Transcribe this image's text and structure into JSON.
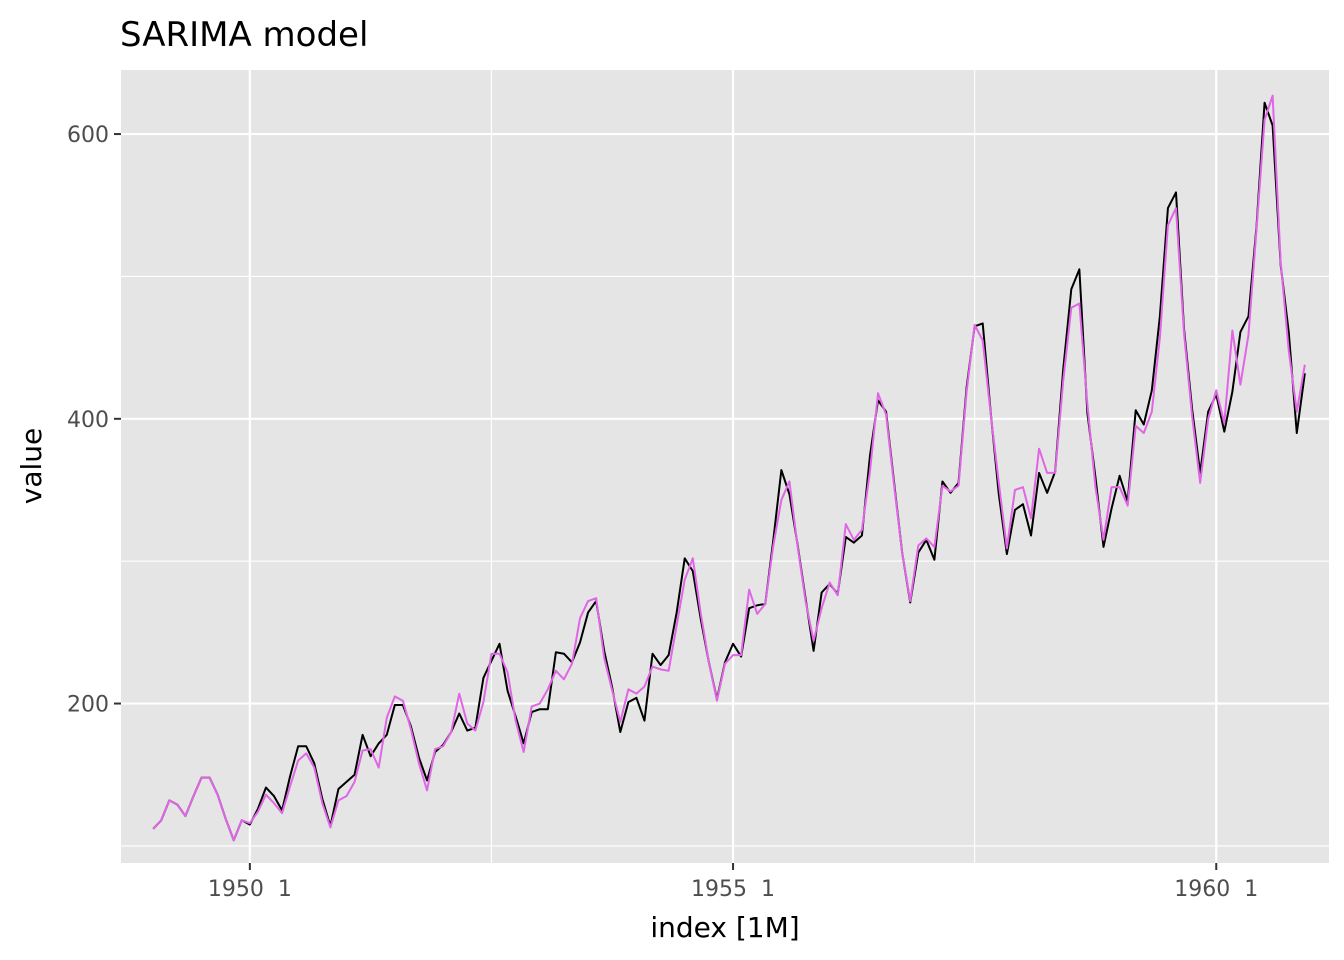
{
  "chart_data": {
    "type": "line",
    "title": "SARIMA model",
    "xlabel": "index [1M]",
    "ylabel": "value",
    "x_start": "1949-01",
    "x_frequency": "monthly",
    "xlim": [
      "1948-09",
      "1961-03"
    ],
    "ylim": [
      88,
      645
    ],
    "x_ticks": [
      {
        "month_index": 12,
        "label": "1950  1"
      },
      {
        "month_index": 72,
        "label": "1955  1"
      },
      {
        "month_index": 132,
        "label": "1960  1"
      }
    ],
    "x_minor_ticks_month_index": [
      42,
      102
    ],
    "y_ticks": [
      {
        "value": 200,
        "label": "200"
      },
      {
        "value": 400,
        "label": "400"
      },
      {
        "value": 600,
        "label": "600"
      }
    ],
    "y_minor_ticks": [
      100,
      300,
      500
    ],
    "grid": true,
    "legend": "none",
    "colors": {
      "panel": "#e5e5e5",
      "actual": "#000000",
      "fitted": "#e066e6"
    },
    "series": [
      {
        "values": [
          112,
          118,
          132,
          129,
          121,
          135,
          148,
          148,
          136,
          119,
          104,
          118,
          115,
          126,
          141,
          135,
          125,
          149,
          170,
          170,
          158,
          133,
          114,
          140,
          145,
          150,
          178,
          163,
          172,
          178,
          199,
          199,
          184,
          162,
          146,
          166,
          171,
          180,
          193,
          181,
          183,
          218,
          230,
          242,
          209,
          191,
          172,
          194,
          196,
          196,
          236,
          235,
          229,
          243,
          264,
          272,
          237,
          211,
          180,
          201,
          204,
          188,
          235,
          227,
          234,
          264,
          302,
          293,
          259,
          229,
          203,
          229,
          242,
          233,
          267,
          269,
          270,
          315,
          364,
          347,
          312,
          274,
          237,
          278,
          284,
          277,
          317,
          313,
          318,
          374,
          413,
          405,
          355,
          306,
          271,
          306,
          315,
          301,
          356,
          348,
          355,
          422,
          465,
          467,
          404,
          347,
          305,
          336,
          340,
          318,
          362,
          348,
          363,
          435,
          491,
          505,
          404,
          359,
          310,
          337,
          360,
          342,
          406,
          396,
          420,
          472,
          548,
          559,
          463,
          407,
          362,
          405,
          417,
          391,
          419,
          461,
          472,
          535,
          622,
          606,
          508,
          461,
          390,
          432
        ]
      },
      {
        "values": [
          112,
          118,
          132,
          129,
          121,
          135,
          148,
          148,
          136,
          119,
          104,
          118,
          116,
          124,
          136,
          130,
          123,
          142,
          160,
          165,
          155,
          130,
          113,
          132,
          135,
          145,
          167,
          168,
          155,
          190,
          205,
          202,
          182,
          158,
          139,
          168,
          170,
          180,
          207,
          186,
          181,
          201,
          235,
          235,
          222,
          188,
          166,
          198,
          200,
          210,
          223,
          217,
          228,
          260,
          272,
          274,
          232,
          209,
          187,
          210,
          207,
          212,
          226,
          224,
          223,
          255,
          287,
          302,
          263,
          229,
          202,
          228,
          234,
          234,
          280,
          263,
          270,
          311,
          343,
          356,
          311,
          272,
          244,
          267,
          285,
          276,
          326,
          315,
          322,
          363,
          418,
          403,
          353,
          306,
          272,
          311,
          316,
          310,
          353,
          349,
          353,
          419,
          466,
          455,
          403,
          355,
          309,
          350,
          352,
          330,
          379,
          362,
          362,
          427,
          478,
          481,
          410,
          352,
          315,
          352,
          352,
          339,
          395,
          390,
          405,
          457,
          536,
          548,
          460,
          402,
          355,
          400,
          420,
          397,
          462,
          424,
          459,
          533,
          610,
          627,
          510,
          448,
          405,
          438
        ]
      }
    ]
  }
}
